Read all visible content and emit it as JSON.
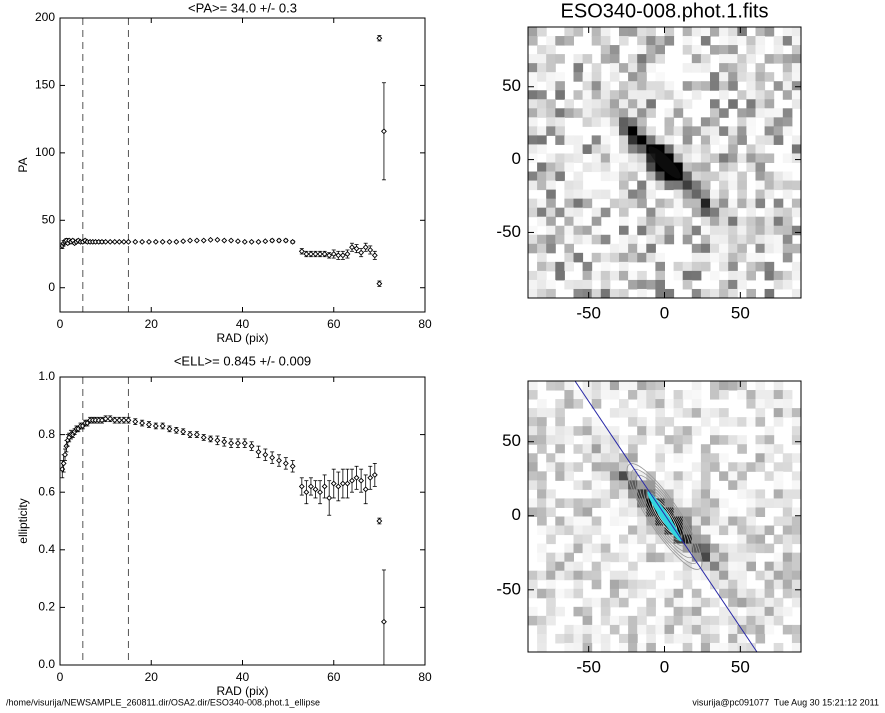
{
  "chart_data": [
    {
      "type": "scatter",
      "title": "<PA>= 34.0 +/- 0.3",
      "x_label": "RAD (pix)",
      "y_label": "PA",
      "xlim": [
        0,
        80
      ],
      "xticks": [
        0,
        20,
        40,
        60,
        80
      ],
      "ylim": [
        -18,
        200
      ],
      "yticks": [
        0,
        50,
        100,
        150,
        200
      ],
      "vlines": [
        5,
        15
      ],
      "color": "#000000",
      "x": [
        0.5,
        0.8,
        1.1,
        1.4,
        1.7,
        2.0,
        2.4,
        2.8,
        3.2,
        3.6,
        4.0,
        4.5,
        5.0,
        5.5,
        6.0,
        6.6,
        7.2,
        7.8,
        8.5,
        9.2,
        10,
        11,
        12,
        13,
        14,
        15,
        16.5,
        18,
        19.5,
        21,
        22.5,
        24,
        25.5,
        27,
        28.5,
        30,
        31.5,
        33,
        34.5,
        36,
        37.5,
        39,
        40.5,
        42,
        43.5,
        45,
        46.5,
        48,
        49.5,
        51,
        53,
        54,
        55,
        56,
        57,
        58,
        59,
        60,
        61,
        62,
        63,
        64,
        65,
        66,
        67,
        68,
        69,
        70,
        70,
        71
      ],
      "values": [
        31,
        33,
        34,
        35,
        33,
        35,
        34,
        35,
        33,
        34,
        35,
        34,
        34,
        35,
        34,
        34,
        34,
        34,
        34,
        34,
        34,
        34,
        34,
        34,
        34,
        34,
        34,
        34,
        34,
        34,
        34,
        34,
        34,
        34.5,
        35,
        35,
        35,
        35.5,
        35.5,
        35,
        35,
        34.5,
        34,
        34,
        34,
        34.5,
        35,
        35,
        35,
        34,
        27,
        25,
        25,
        25,
        25,
        25,
        24,
        25,
        24,
        24,
        25,
        30,
        29,
        26,
        30,
        28,
        24,
        185,
        3,
        116
      ],
      "errors": [
        2,
        2,
        1.5,
        1.5,
        1,
        1,
        1,
        1,
        1,
        1,
        1,
        1,
        1,
        1,
        1,
        1,
        1,
        1,
        1,
        1,
        0.5,
        0.5,
        0.5,
        0.5,
        0.5,
        0.5,
        0.5,
        0.5,
        0.5,
        0.5,
        0.5,
        0.5,
        0.5,
        0.5,
        0.5,
        0.5,
        0.5,
        0.5,
        0.5,
        0.5,
        0.5,
        0.5,
        0.5,
        0.5,
        0.5,
        0.5,
        1,
        1,
        1,
        1,
        2,
        2,
        2,
        2,
        2,
        2,
        2,
        3,
        3,
        3,
        3,
        3,
        3,
        3,
        3,
        3,
        3,
        2,
        2,
        36
      ]
    },
    {
      "type": "scatter",
      "title": "<ELL>= 0.845 +/- 0.009",
      "x_label": "RAD (pix)",
      "y_label": "ellipticity",
      "xlim": [
        0,
        80
      ],
      "xticks": [
        0,
        20,
        40,
        60,
        80
      ],
      "ylim": [
        0,
        1
      ],
      "yticks": [
        {
          "value": 0,
          "label": "0.0"
        },
        0.2,
        0.4,
        0.6,
        0.8,
        {
          "value": 1,
          "label": "1.0"
        }
      ],
      "vlines": [
        5,
        15
      ],
      "color": "#000000",
      "x": [
        0.5,
        0.8,
        1.1,
        1.4,
        1.7,
        2.0,
        2.4,
        2.8,
        3.2,
        3.6,
        4.0,
        4.5,
        5.0,
        5.5,
        6.0,
        6.6,
        7.2,
        7.8,
        8.5,
        9.2,
        10,
        11,
        12,
        13,
        14,
        15,
        16.5,
        18,
        19.5,
        21,
        22.5,
        24,
        25.5,
        27,
        28.5,
        30,
        31.5,
        33,
        34.5,
        36,
        37.5,
        39,
        40.5,
        42,
        43.5,
        45,
        46.5,
        48,
        49.5,
        51,
        53,
        54,
        55,
        56,
        57,
        58,
        59,
        60,
        61,
        62,
        63,
        64,
        65,
        66,
        67,
        68,
        69,
        70,
        71
      ],
      "values": [
        0.68,
        0.7,
        0.73,
        0.76,
        0.78,
        0.79,
        0.8,
        0.8,
        0.81,
        0.82,
        0.82,
        0.83,
        0.83,
        0.84,
        0.84,
        0.85,
        0.85,
        0.85,
        0.85,
        0.85,
        0.855,
        0.855,
        0.85,
        0.85,
        0.85,
        0.85,
        0.845,
        0.84,
        0.835,
        0.83,
        0.83,
        0.82,
        0.815,
        0.81,
        0.8,
        0.8,
        0.79,
        0.785,
        0.78,
        0.775,
        0.77,
        0.77,
        0.77,
        0.76,
        0.74,
        0.73,
        0.72,
        0.71,
        0.7,
        0.69,
        0.62,
        0.6,
        0.62,
        0.61,
        0.6,
        0.62,
        0.58,
        0.63,
        0.62,
        0.63,
        0.63,
        0.64,
        0.65,
        0.64,
        0.61,
        0.65,
        0.66,
        0.5,
        0.15
      ],
      "errors": [
        0.03,
        0.03,
        0.02,
        0.02,
        0.02,
        0.015,
        0.015,
        0.01,
        0.01,
        0.01,
        0.01,
        0.01,
        0.01,
        0.01,
        0.01,
        0.01,
        0.01,
        0.01,
        0.01,
        0.01,
        0.01,
        0.01,
        0.01,
        0.01,
        0.01,
        0.01,
        0.01,
        0.01,
        0.01,
        0.01,
        0.01,
        0.01,
        0.01,
        0.01,
        0.01,
        0.01,
        0.01,
        0.01,
        0.015,
        0.015,
        0.015,
        0.015,
        0.015,
        0.015,
        0.02,
        0.02,
        0.02,
        0.02,
        0.02,
        0.02,
        0.03,
        0.04,
        0.03,
        0.03,
        0.04,
        0.04,
        0.06,
        0.05,
        0.05,
        0.05,
        0.05,
        0.04,
        0.04,
        0.04,
        0.05,
        0.04,
        0.04,
        0.01,
        0.18
      ]
    },
    {
      "type": "image",
      "title": "ESO340-008.phot.1.fits",
      "xlim": [
        -90,
        90
      ],
      "xticks": [
        -50,
        0,
        50
      ],
      "ylim": [
        -95,
        91
      ],
      "yticks": [
        -50,
        0,
        50
      ]
    },
    {
      "type": "image",
      "xlim": [
        -90,
        90
      ],
      "xticks": [
        -50,
        0,
        50
      ],
      "ylim": [
        -92,
        91
      ],
      "yticks": [
        -50,
        0,
        50
      ],
      "model": true
    }
  ],
  "footer": {
    "path": "/home/visurija/NEWSAMPLE_260811.dir/OSA2.dir/ESO340-008.phot.1_ellipse",
    "stamp": "visurija@pc091077  Tue Aug 30 15:21:12 2011"
  }
}
